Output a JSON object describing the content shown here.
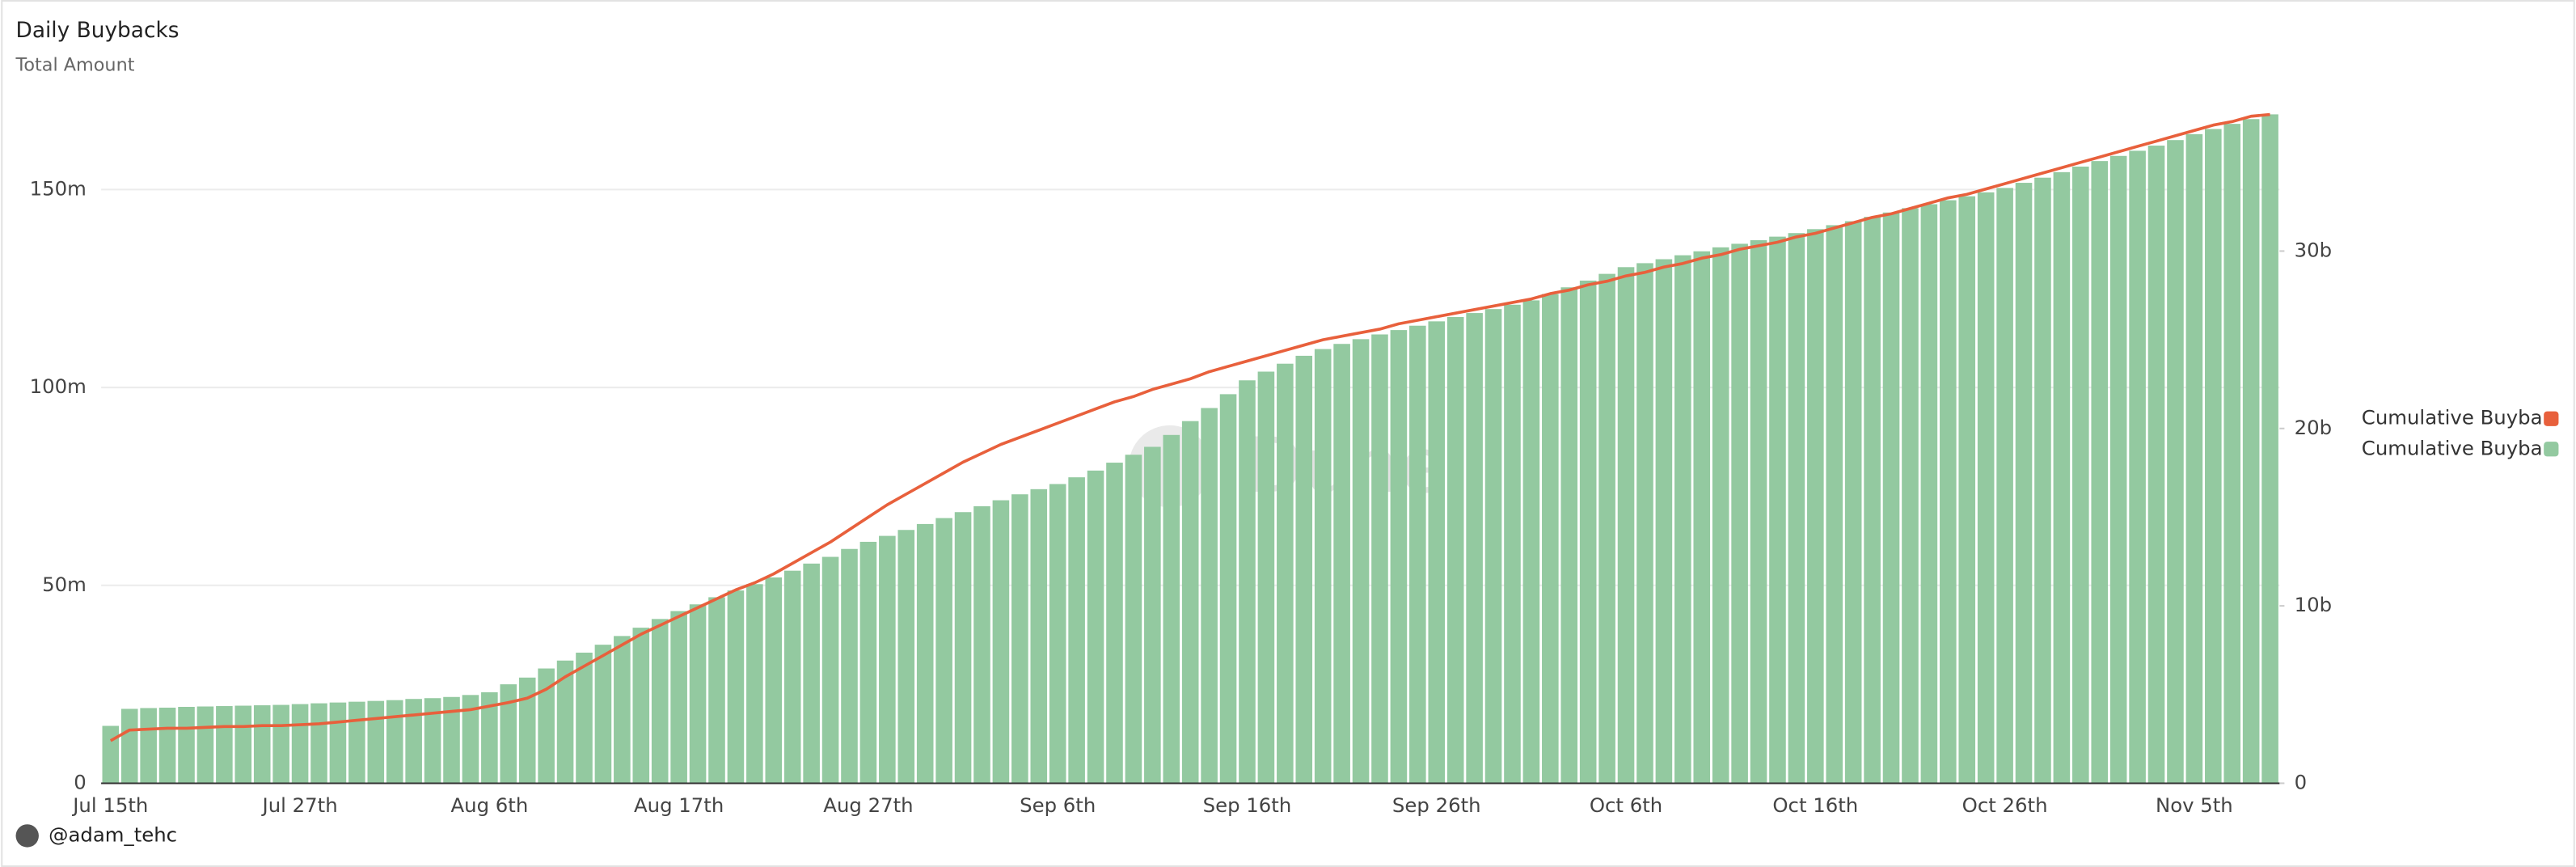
{
  "chart_data": {
    "type": "bar",
    "title": "Daily Buybacks",
    "subtitle": "Total Amount",
    "watermark": "Dune",
    "author": "@adam_tehc",
    "categories": [
      "Jul 15th",
      null,
      null,
      null,
      null,
      null,
      null,
      null,
      null,
      null,
      "Jul 27th",
      null,
      null,
      null,
      null,
      null,
      null,
      null,
      null,
      null,
      "Aug 6th",
      null,
      null,
      null,
      null,
      null,
      null,
      null,
      null,
      null,
      "Aug 17th",
      null,
      null,
      null,
      null,
      null,
      null,
      null,
      null,
      null,
      "Aug 27th",
      null,
      null,
      null,
      null,
      null,
      null,
      null,
      null,
      null,
      "Sep 6th",
      null,
      null,
      null,
      null,
      null,
      null,
      null,
      null,
      null,
      "Sep 16th",
      null,
      null,
      null,
      null,
      null,
      null,
      null,
      null,
      null,
      "Sep 26th",
      null,
      null,
      null,
      null,
      null,
      null,
      null,
      null,
      null,
      "Oct 6th",
      null,
      null,
      null,
      null,
      null,
      null,
      null,
      null,
      null,
      "Oct 16th",
      null,
      null,
      null,
      null,
      null,
      null,
      null,
      null,
      null,
      "Oct 26th",
      null,
      null,
      null,
      null,
      null,
      null,
      null,
      null,
      null,
      "Nov 5th",
      null,
      null,
      null,
      null
    ],
    "series": [
      {
        "name": "Cumulative Buyba",
        "type": "line",
        "axis": "y2",
        "color": "#e8603c",
        "values": [
          2.4,
          3.0,
          3.05,
          3.1,
          3.1,
          3.15,
          3.2,
          3.2,
          3.25,
          3.25,
          3.3,
          3.35,
          3.45,
          3.55,
          3.65,
          3.75,
          3.85,
          3.95,
          4.05,
          4.15,
          4.35,
          4.55,
          4.8,
          5.3,
          6.0,
          6.6,
          7.2,
          7.8,
          8.4,
          8.9,
          9.4,
          9.9,
          10.4,
          10.9,
          11.3,
          11.8,
          12.4,
          13.0,
          13.6,
          14.3,
          15.0,
          15.7,
          16.3,
          16.9,
          17.5,
          18.1,
          18.6,
          19.1,
          19.5,
          19.9,
          20.3,
          20.7,
          21.1,
          21.5,
          21.8,
          22.2,
          22.5,
          22.8,
          23.2,
          23.5,
          23.8,
          24.1,
          24.4,
          24.7,
          25.0,
          25.2,
          25.4,
          25.6,
          25.9,
          26.1,
          26.3,
          26.5,
          26.7,
          26.9,
          27.1,
          27.3,
          27.6,
          27.8,
          28.1,
          28.3,
          28.6,
          28.8,
          29.1,
          29.3,
          29.6,
          29.8,
          30.1,
          30.3,
          30.5,
          30.8,
          31.0,
          31.3,
          31.6,
          31.9,
          32.1,
          32.4,
          32.7,
          33.0,
          33.2,
          33.5,
          33.8,
          34.1,
          34.4,
          34.7,
          35.0,
          35.3,
          35.6,
          35.9,
          36.2,
          36.5,
          36.8,
          37.1,
          37.3,
          37.6,
          37.7
        ]
      },
      {
        "name": "Cumulative Buyba",
        "type": "bar",
        "color": "#93c9a0",
        "values": [
          14.5,
          18.8,
          19.0,
          19.1,
          19.3,
          19.4,
          19.5,
          19.6,
          19.7,
          19.8,
          20.0,
          20.2,
          20.4,
          20.6,
          20.8,
          21.0,
          21.3,
          21.5,
          21.8,
          22.3,
          23.0,
          25.0,
          26.7,
          29.0,
          31.0,
          33.0,
          35.0,
          37.2,
          39.3,
          41.5,
          43.5,
          45.2,
          47.0,
          48.7,
          50.3,
          52.0,
          53.7,
          55.5,
          57.2,
          59.2,
          61.0,
          62.5,
          64.0,
          65.5,
          67.0,
          68.5,
          70.0,
          71.5,
          73.0,
          74.3,
          75.6,
          77.3,
          79.0,
          81.0,
          83.0,
          85.0,
          88.0,
          91.5,
          94.8,
          98.3,
          101.8,
          104.0,
          106.0,
          108.0,
          109.7,
          111.0,
          112.2,
          113.4,
          114.5,
          115.6,
          116.7,
          117.8,
          118.8,
          119.8,
          120.9,
          122.0,
          123.6,
          125.3,
          127.0,
          128.7,
          130.4,
          131.4,
          132.4,
          133.4,
          134.4,
          135.4,
          136.3,
          137.2,
          138.1,
          139.0,
          140.0,
          141.0,
          142.0,
          143.1,
          144.2,
          145.3,
          146.3,
          147.3,
          148.3,
          149.3,
          150.4,
          151.7,
          153.0,
          154.4,
          155.8,
          157.2,
          158.5,
          159.8,
          161.1,
          162.5,
          164.0,
          165.3,
          166.6,
          167.8,
          169.0
        ]
      }
    ],
    "ylim": [
      0,
      173
    ],
    "yticks": [
      0,
      {
        "value": 50,
        "label": "50m"
      },
      {
        "value": 100,
        "label": "100m"
      },
      {
        "value": 150,
        "label": "150m"
      }
    ],
    "y2lim": [
      0,
      38.6
    ],
    "y2ticks": [
      0,
      {
        "value": 10,
        "label": "10b"
      },
      {
        "value": 20,
        "label": "20b"
      },
      {
        "value": 30,
        "label": "30b"
      }
    ],
    "grid": true,
    "legend": "right"
  }
}
